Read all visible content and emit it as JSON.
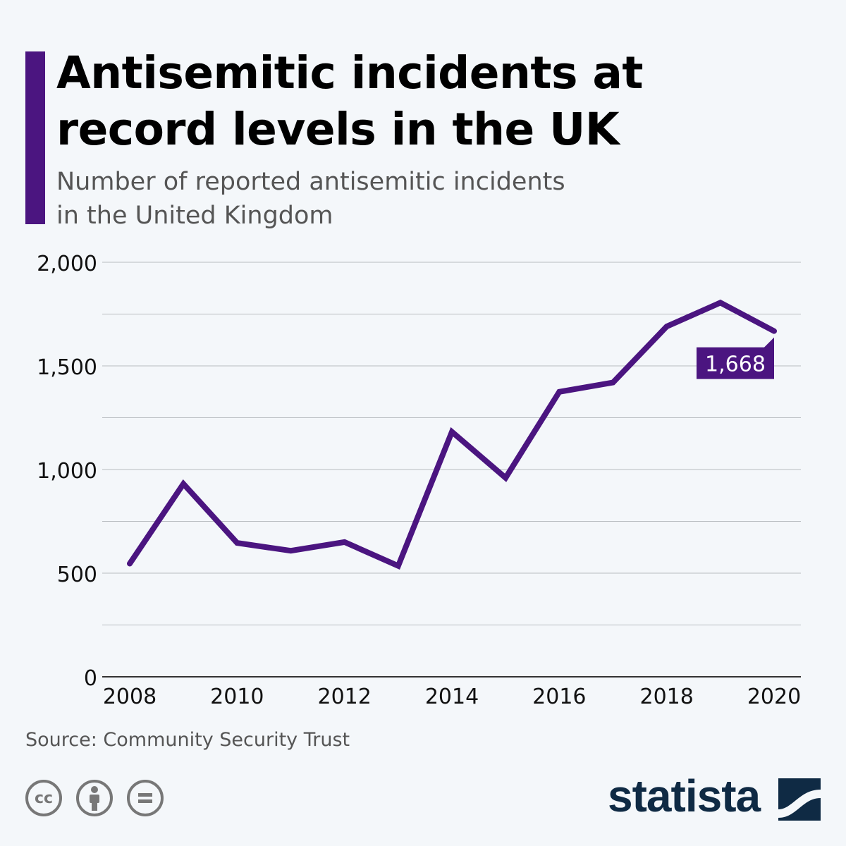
{
  "header": {
    "title_line1": "Antisemitic incidents at",
    "title_line2": "record levels in the UK",
    "subtitle_line1": "Number of reported antisemitic incidents",
    "subtitle_line2": "in the United Kingdom"
  },
  "chart_data": {
    "type": "line",
    "x": [
      2008,
      2009,
      2010,
      2011,
      2012,
      2013,
      2014,
      2015,
      2016,
      2017,
      2018,
      2019,
      2020
    ],
    "series": [
      {
        "values": [
          546,
          931,
          646,
          608,
          650,
          535,
          1182,
          960,
          1375,
          1420,
          1690,
          1805,
          1668
        ],
        "color": "#4b1580"
      }
    ],
    "ylim": [
      0,
      2000
    ],
    "yticks": [
      0,
      500,
      1000,
      1500,
      2000
    ],
    "ytick_labels": [
      "0",
      "500",
      "1,000",
      "1,500",
      "2,000"
    ],
    "xticks": [
      2008,
      2010,
      2012,
      2014,
      2016,
      2018,
      2020
    ],
    "xtick_labels": [
      "2008",
      "2010",
      "2012",
      "2014",
      "2016",
      "2018",
      "2020"
    ],
    "grid": true,
    "annotation": {
      "x": 2020,
      "label": "1,668"
    }
  },
  "footer": {
    "source": "Source: Community Security Trust",
    "logo": "statista",
    "license_icons": [
      "cc-icon",
      "attribution-icon",
      "no-derivatives-icon"
    ]
  },
  "colors": {
    "accent": "#4b1580",
    "logo": "#0f2a44"
  }
}
